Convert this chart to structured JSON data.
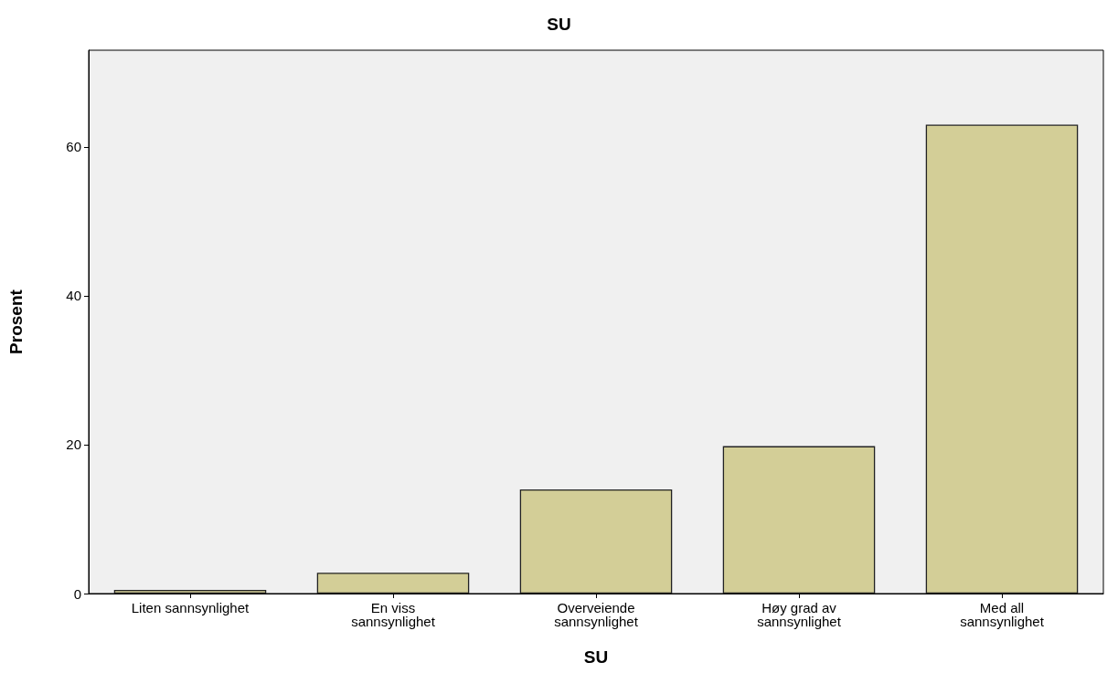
{
  "chart_data": {
    "type": "bar",
    "title": "SU",
    "xlabel": "SU",
    "ylabel": "Prosent",
    "categories": [
      "Liten sannsynlighet",
      "En viss\nsannsynlighet",
      "Overveiende\nsannsynlighet",
      "Høy grad av\nsannsynlighet",
      "Med all\nsannsynlighet"
    ],
    "values": [
      0.5,
      2.8,
      14.0,
      19.8,
      63.0
    ],
    "color": "#d3ce97",
    "ylim": [
      0,
      73
    ],
    "yticks": [
      0,
      20,
      40,
      60
    ],
    "grid": false
  }
}
